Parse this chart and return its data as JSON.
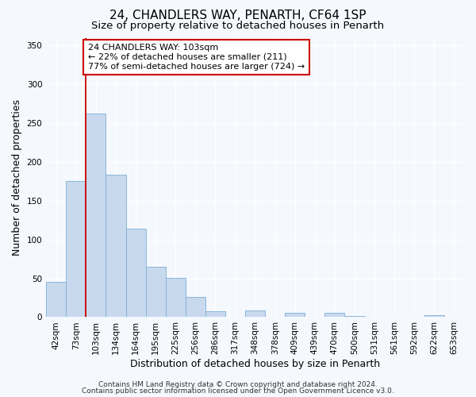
{
  "title": "24, CHANDLERS WAY, PENARTH, CF64 1SP",
  "subtitle": "Size of property relative to detached houses in Penarth",
  "xlabel": "Distribution of detached houses by size in Penarth",
  "ylabel": "Number of detached properties",
  "footer_line1": "Contains HM Land Registry data © Crown copyright and database right 2024.",
  "footer_line2": "Contains public sector information licensed under the Open Government Licence v3.0.",
  "bin_labels": [
    "42sqm",
    "73sqm",
    "103sqm",
    "134sqm",
    "164sqm",
    "195sqm",
    "225sqm",
    "256sqm",
    "286sqm",
    "317sqm",
    "348sqm",
    "378sqm",
    "409sqm",
    "439sqm",
    "470sqm",
    "500sqm",
    "531sqm",
    "561sqm",
    "592sqm",
    "622sqm",
    "653sqm"
  ],
  "bar_values": [
    45,
    175,
    262,
    184,
    114,
    65,
    51,
    26,
    8,
    0,
    9,
    0,
    6,
    0,
    6,
    2,
    0,
    0,
    0,
    3,
    0
  ],
  "bar_color": "#c8d9ee",
  "bar_edge_color": "#7aaed4",
  "vline_x": 2,
  "vline_color": "#cc0000",
  "annotation_line1": "24 CHANDLERS WAY: 103sqm",
  "annotation_line2": "← 22% of detached houses are smaller (211)",
  "annotation_line3": "77% of semi-detached houses are larger (724) →",
  "annotation_box_color": "#ffffff",
  "annotation_box_edge_color": "#cc0000",
  "ylim": [
    0,
    360
  ],
  "yticks": [
    0,
    50,
    100,
    150,
    200,
    250,
    300,
    350
  ],
  "background_color": "#f5f8fd",
  "axes_background": "#f5f8fd",
  "grid_color": "#ffffff",
  "title_fontsize": 11,
  "subtitle_fontsize": 9.5,
  "label_fontsize": 9,
  "tick_fontsize": 7.5,
  "footer_fontsize": 6.5
}
